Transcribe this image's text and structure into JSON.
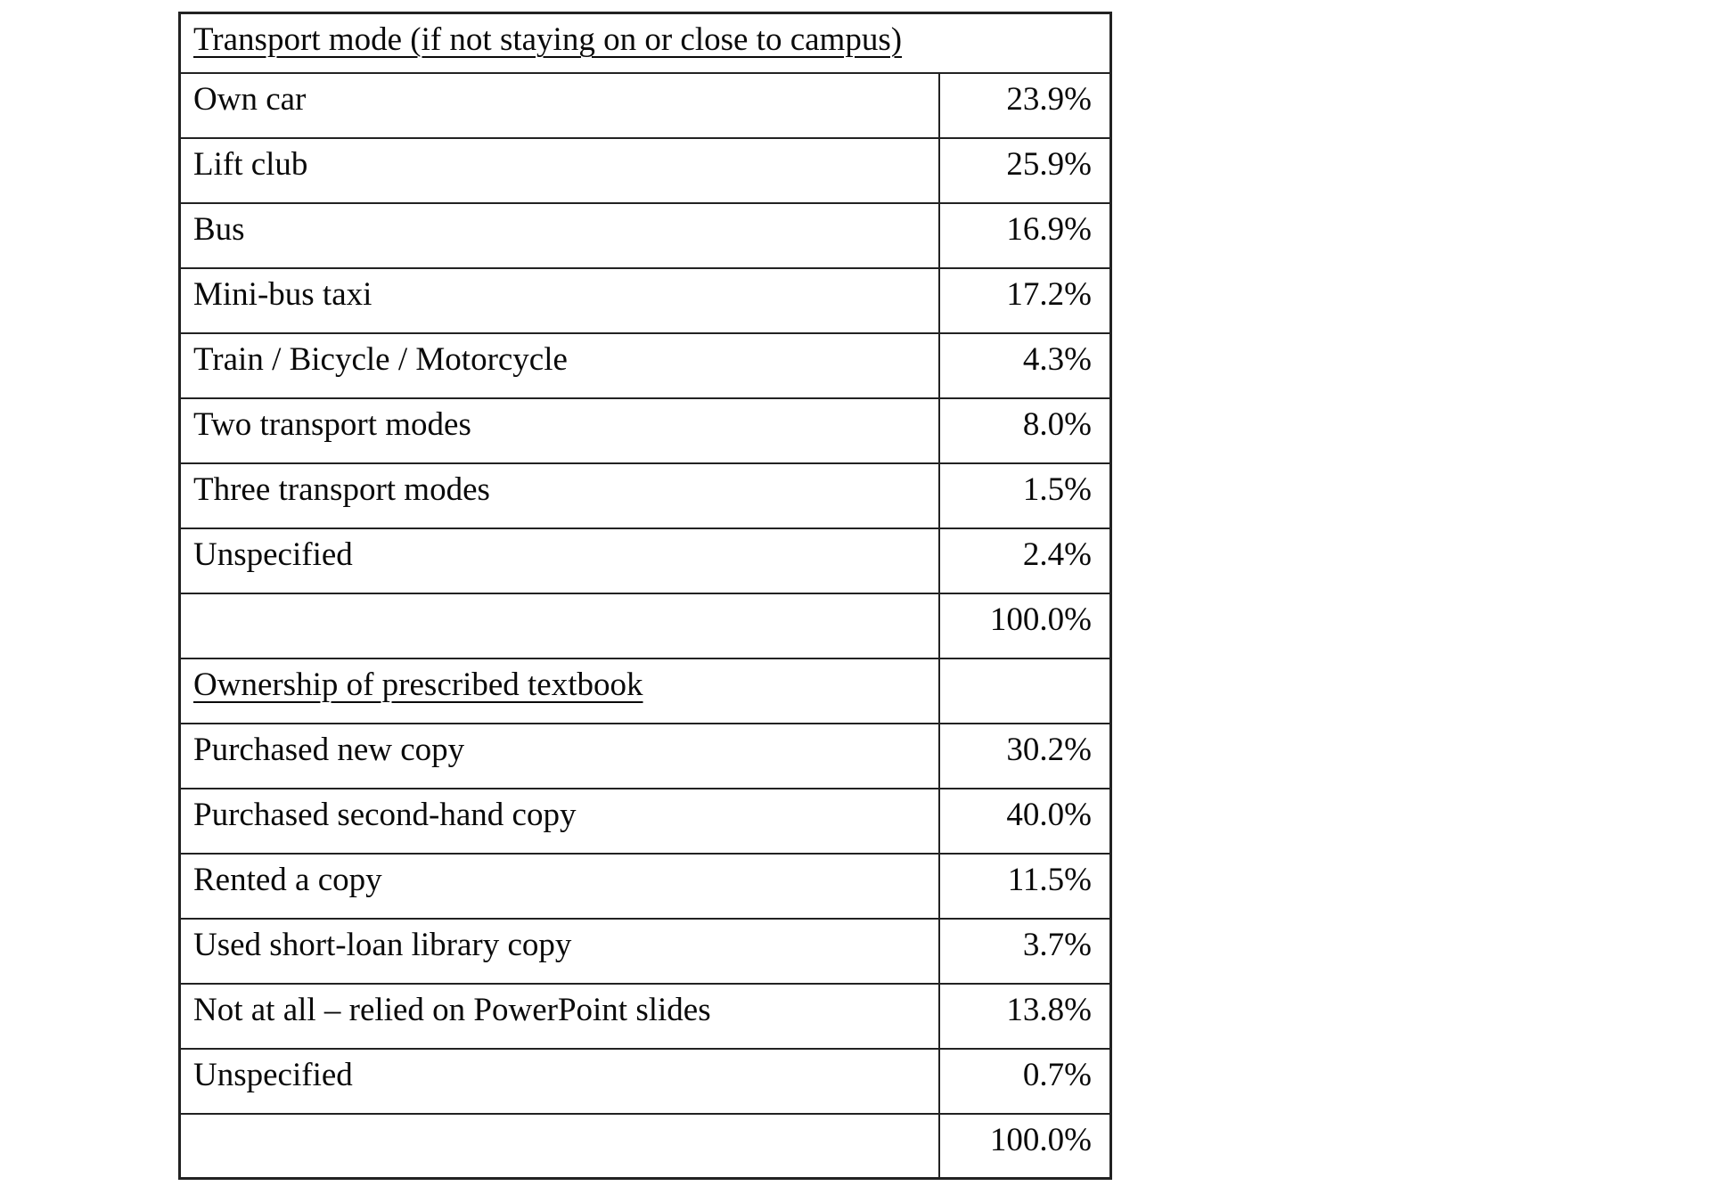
{
  "page": {
    "background_color": "#ffffff",
    "text_color": "#0a0a0a",
    "border_color": "#222222"
  },
  "table": {
    "rows": [
      {
        "kind": "header",
        "label": "Transport mode (if not staying on or close to campus)",
        "value": ""
      },
      {
        "kind": "data",
        "label": "Own car",
        "value": "23.9%"
      },
      {
        "kind": "data",
        "label": "Lift club",
        "value": "25.9%"
      },
      {
        "kind": "data",
        "label": "Bus",
        "value": "16.9%"
      },
      {
        "kind": "data",
        "label": "Mini-bus taxi",
        "value": "17.2%"
      },
      {
        "kind": "data",
        "label": "Train / Bicycle / Motorcycle",
        "value": "4.3%"
      },
      {
        "kind": "data",
        "label": "Two transport modes",
        "value": "8.0%"
      },
      {
        "kind": "data",
        "label": "Three transport modes",
        "value": "1.5%"
      },
      {
        "kind": "data",
        "label": "Unspecified",
        "value": "2.4%"
      },
      {
        "kind": "total",
        "label": "",
        "value": "100.0%"
      },
      {
        "kind": "subheader",
        "label": "Ownership of prescribed textbook",
        "value": ""
      },
      {
        "kind": "data",
        "label": "Purchased new copy",
        "value": "30.2%"
      },
      {
        "kind": "data",
        "label": "Purchased second-hand copy",
        "value": "40.0%"
      },
      {
        "kind": "data",
        "label": "Rented a copy",
        "value": "11.5%"
      },
      {
        "kind": "data",
        "label": "Used short-loan library copy",
        "value": "3.7%"
      },
      {
        "kind": "data",
        "label": "Not at all – relied on PowerPoint slides",
        "value": "13.8%"
      },
      {
        "kind": "data",
        "label": "Unspecified",
        "value": "0.7%"
      },
      {
        "kind": "total",
        "label": "",
        "value": "100.0%"
      }
    ]
  }
}
